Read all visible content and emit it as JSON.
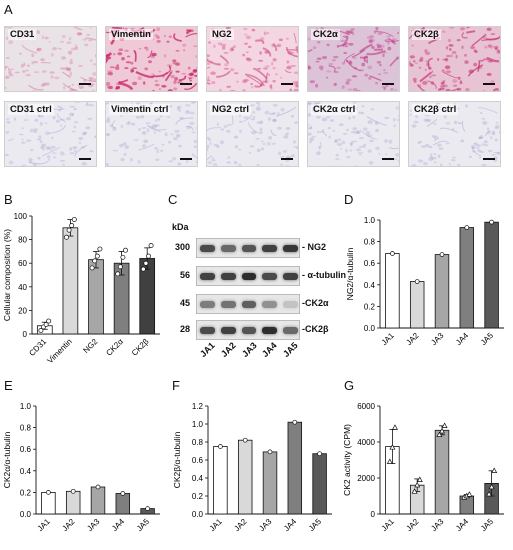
{
  "panels": {
    "A": "A",
    "B": "B",
    "C": "C",
    "D": "D",
    "E": "E",
    "F": "F",
    "G": "G"
  },
  "ihc": {
    "stained": [
      {
        "label": "CD31",
        "bg": "#e9e2e6",
        "stain": "#d9679a",
        "density": 0.25
      },
      {
        "label": "Vimentin",
        "bg": "#f0c9d7",
        "stain": "#c8246a",
        "density": 0.85
      },
      {
        "label": "NG2",
        "bg": "#f3d6e1",
        "stain": "#d14d86",
        "density": 0.55
      },
      {
        "label": "CK2α",
        "bg": "#ddc3d8",
        "stain": "#c1428a",
        "density": 0.6
      },
      {
        "label": "CK2β",
        "bg": "#e8c3d3",
        "stain": "#c83677",
        "density": 0.7
      }
    ],
    "control": [
      {
        "label": "CD31 ctrl"
      },
      {
        "label": "Vimentin ctrl"
      },
      {
        "label": "NG2 ctrl"
      },
      {
        "label": "CK2α ctrl"
      },
      {
        "label": "CK2β ctrl"
      }
    ],
    "control_bg": "#eceaf1",
    "control_stain": "#9c98c4"
  },
  "chart_data": [
    {
      "panel": "B",
      "type": "bar",
      "ylabel": "Cellular composition (%)",
      "ylim": [
        0,
        100
      ],
      "yticks": [
        0,
        20,
        40,
        60,
        80,
        100
      ],
      "categories": [
        "CD31",
        "Vimentin",
        "NG2",
        "CK2α",
        "CK2β"
      ],
      "values": [
        7,
        90,
        63,
        60,
        64
      ],
      "errors": [
        3,
        7,
        7,
        10,
        9
      ],
      "points": [
        [
          3,
          6,
          8,
          11
        ],
        [
          82,
          88,
          92,
          97
        ],
        [
          56,
          62,
          66,
          72
        ],
        [
          51,
          57,
          65,
          71
        ],
        [
          55,
          60,
          66,
          75
        ]
      ],
      "colors": [
        "#ffffff",
        "#d9d9d9",
        "#a6a6a6",
        "#7f7f7f",
        "#404040"
      ]
    },
    {
      "panel": "D",
      "type": "bar",
      "ylabel": "NG2/α-tubulin",
      "ylim": [
        0,
        1.0
      ],
      "yticks": [
        0.0,
        0.2,
        0.4,
        0.6,
        0.8,
        1.0
      ],
      "categories": [
        "JA1",
        "JA2",
        "JA3",
        "JA4",
        "JA5"
      ],
      "values": [
        0.69,
        0.43,
        0.68,
        0.93,
        0.98
      ],
      "colors": [
        "#ffffff",
        "#d9d9d9",
        "#a6a6a6",
        "#7f7f7f",
        "#595959"
      ]
    },
    {
      "panel": "E",
      "type": "bar",
      "ylabel": "CK2α/α-tubulin",
      "ylim": [
        0,
        1.0
      ],
      "yticks": [
        0.0,
        0.2,
        0.4,
        0.6,
        0.8,
        1.0
      ],
      "categories": [
        "JA1",
        "JA2",
        "JA3",
        "JA4",
        "JA5"
      ],
      "values": [
        0.2,
        0.21,
        0.25,
        0.19,
        0.05
      ],
      "colors": [
        "#ffffff",
        "#d9d9d9",
        "#a6a6a6",
        "#7f7f7f",
        "#595959"
      ]
    },
    {
      "panel": "F",
      "type": "bar",
      "ylabel": "CK2β/α-tubulin",
      "ylim": [
        0,
        1.2
      ],
      "yticks": [
        0.0,
        0.2,
        0.4,
        0.6,
        0.8,
        1.0,
        1.2
      ],
      "categories": [
        "JA1",
        "JA2",
        "JA3",
        "JA4",
        "JA5"
      ],
      "values": [
        0.75,
        0.82,
        0.69,
        1.02,
        0.67
      ],
      "colors": [
        "#ffffff",
        "#d9d9d9",
        "#a6a6a6",
        "#7f7f7f",
        "#595959"
      ]
    },
    {
      "panel": "G",
      "type": "bar",
      "ylabel": "CK2 activity (CPM)",
      "ylim": [
        0,
        6000
      ],
      "yticks": [
        0,
        2000,
        4000,
        6000
      ],
      "categories": [
        "JA1",
        "JA2",
        "JA3",
        "JA4",
        "JA5"
      ],
      "values": [
        3750,
        1600,
        4650,
        1000,
        1700
      ],
      "errors": [
        950,
        350,
        250,
        80,
        700
      ],
      "points": [
        [
          2900,
          3700,
          4800
        ],
        [
          1250,
          1600,
          1900
        ],
        [
          4400,
          4600,
          4900
        ],
        [
          920,
          1000,
          1080
        ],
        [
          1100,
          1500,
          2400
        ]
      ],
      "colors": [
        "#ffffff",
        "#d9d9d9",
        "#a6a6a6",
        "#7f7f7f",
        "#595959"
      ]
    }
  ],
  "blot": {
    "kda_label": "kDa",
    "rows": [
      {
        "marker": "300",
        "protein": "- NG2",
        "intensities": [
          0.8,
          0.65,
          0.75,
          0.85,
          0.9
        ]
      },
      {
        "marker": "56",
        "protein": "- α-tubulin",
        "intensities": [
          0.85,
          0.85,
          0.95,
          0.8,
          0.85
        ]
      },
      {
        "marker": "45",
        "protein": "-CK2α",
        "intensities": [
          0.55,
          0.6,
          0.7,
          0.45,
          0.2
        ]
      },
      {
        "marker": "28",
        "protein": "-CK2β",
        "intensities": [
          0.8,
          0.85,
          0.75,
          0.95,
          0.65
        ]
      }
    ],
    "lanes": [
      "JA1",
      "JA2",
      "JA3",
      "JA4",
      "JA5"
    ]
  }
}
